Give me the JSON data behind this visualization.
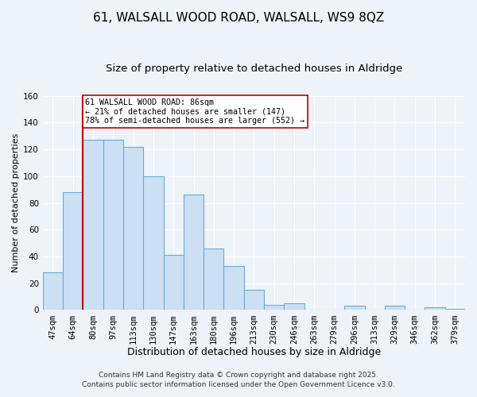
{
  "title": "61, WALSALL WOOD ROAD, WALSALL, WS9 8QZ",
  "subtitle": "Size of property relative to detached houses in Aldridge",
  "xlabel": "Distribution of detached houses by size in Aldridge",
  "ylabel": "Number of detached properties",
  "bar_labels": [
    "47sqm",
    "64sqm",
    "80sqm",
    "97sqm",
    "113sqm",
    "130sqm",
    "147sqm",
    "163sqm",
    "180sqm",
    "196sqm",
    "213sqm",
    "230sqm",
    "246sqm",
    "263sqm",
    "279sqm",
    "296sqm",
    "313sqm",
    "329sqm",
    "346sqm",
    "362sqm",
    "379sqm"
  ],
  "bar_heights": [
    28,
    88,
    127,
    127,
    122,
    100,
    41,
    86,
    46,
    33,
    15,
    4,
    5,
    0,
    0,
    3,
    0,
    3,
    0,
    2,
    1
  ],
  "bar_color": "#ccdff3",
  "bar_edge_color": "#6aaad4",
  "vline_color": "#c00000",
  "annotation_line1": "61 WALSALL WOOD ROAD: 86sqm",
  "annotation_line2": "← 21% of detached houses are smaller (147)",
  "annotation_line3": "78% of semi-detached houses are larger (552) →",
  "annotation_box_color": "#ffffff",
  "annotation_box_edge": "#c00000",
  "ylim": [
    0,
    160
  ],
  "yticks": [
    0,
    20,
    40,
    60,
    80,
    100,
    120,
    140,
    160
  ],
  "footnote1": "Contains HM Land Registry data © Crown copyright and database right 2025.",
  "footnote2": "Contains public sector information licensed under the Open Government Licence v3.0.",
  "bg_color": "#eef2f9",
  "grid_color": "#ffffff",
  "title_fontsize": 11,
  "subtitle_fontsize": 9.5,
  "xlabel_fontsize": 9,
  "ylabel_fontsize": 8,
  "tick_fontsize": 7.5,
  "footnote_fontsize": 6.5
}
